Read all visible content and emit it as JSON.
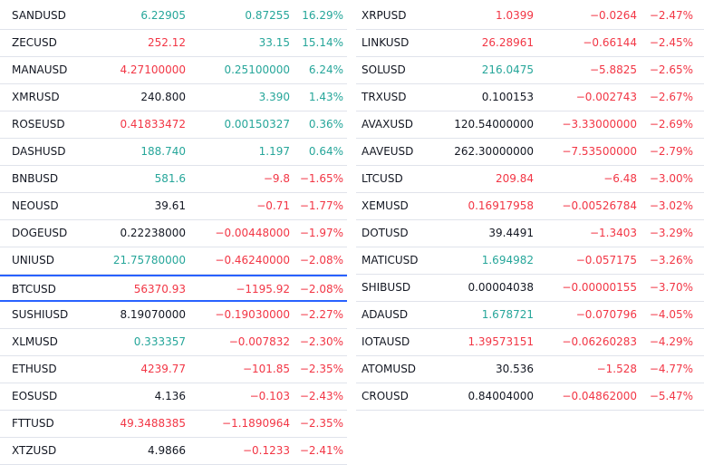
{
  "colors": {
    "up": "#26a69a",
    "down": "#f23645",
    "neutral": "#131722",
    "selected_border": "#2962ff"
  },
  "left": [
    {
      "symbol": "SANDUSD",
      "last": "6.22905",
      "last_dir": "up",
      "change": "0.87255",
      "change_pct": "16.29%",
      "dir": "up"
    },
    {
      "symbol": "ZECUSD",
      "last": "252.12",
      "last_dir": "down",
      "change": "33.15",
      "change_pct": "15.14%",
      "dir": "up"
    },
    {
      "symbol": "MANAUSD",
      "last": "4.27100000",
      "last_dir": "down",
      "change": "0.25100000",
      "change_pct": "6.24%",
      "dir": "up"
    },
    {
      "symbol": "XMRUSD",
      "last": "240.800",
      "last_dir": "flat",
      "change": "3.390",
      "change_pct": "1.43%",
      "dir": "up"
    },
    {
      "symbol": "ROSEUSD",
      "last": "0.41833472",
      "last_dir": "down",
      "change": "0.00150327",
      "change_pct": "0.36%",
      "dir": "up"
    },
    {
      "symbol": "DASHUSD",
      "last": "188.740",
      "last_dir": "up",
      "change": "1.197",
      "change_pct": "0.64%",
      "dir": "up"
    },
    {
      "symbol": "BNBUSD",
      "last": "581.6",
      "last_dir": "up",
      "change": "−9.8",
      "change_pct": "−1.65%",
      "dir": "down"
    },
    {
      "symbol": "NEOUSD",
      "last": "39.61",
      "last_dir": "flat",
      "change": "−0.71",
      "change_pct": "−1.77%",
      "dir": "down"
    },
    {
      "symbol": "DOGEUSD",
      "last": "0.22238000",
      "last_dir": "flat",
      "change": "−0.00448000",
      "change_pct": "−1.97%",
      "dir": "down"
    },
    {
      "symbol": "UNIUSD",
      "last": "21.75780000",
      "last_dir": "up",
      "change": "−0.46240000",
      "change_pct": "−2.08%",
      "dir": "down"
    },
    {
      "symbol": "BTCUSD",
      "last": "56370.93",
      "last_dir": "down",
      "change": "−1195.92",
      "change_pct": "−2.08%",
      "dir": "down",
      "selected": true
    },
    {
      "symbol": "SUSHIUSD",
      "last": "8.19070000",
      "last_dir": "flat",
      "change": "−0.19030000",
      "change_pct": "−2.27%",
      "dir": "down"
    },
    {
      "symbol": "XLMUSD",
      "last": "0.333357",
      "last_dir": "up",
      "change": "−0.007832",
      "change_pct": "−2.30%",
      "dir": "down"
    },
    {
      "symbol": "ETHUSD",
      "last": "4239.77",
      "last_dir": "down",
      "change": "−101.85",
      "change_pct": "−2.35%",
      "dir": "down"
    },
    {
      "symbol": "EOSUSD",
      "last": "4.136",
      "last_dir": "flat",
      "change": "−0.103",
      "change_pct": "−2.43%",
      "dir": "down"
    },
    {
      "symbol": "FTTUSD",
      "last": "49.3488385",
      "last_dir": "down",
      "change": "−1.1890964",
      "change_pct": "−2.35%",
      "dir": "down"
    },
    {
      "symbol": "XTZUSD",
      "last": "4.9866",
      "last_dir": "flat",
      "change": "−0.1233",
      "change_pct": "−2.41%",
      "dir": "down"
    }
  ],
  "right": [
    {
      "symbol": "XRPUSD",
      "last": "1.0399",
      "last_dir": "down",
      "change": "−0.0264",
      "change_pct": "−2.47%",
      "dir": "down"
    },
    {
      "symbol": "LINKUSD",
      "last": "26.28961",
      "last_dir": "down",
      "change": "−0.66144",
      "change_pct": "−2.45%",
      "dir": "down"
    },
    {
      "symbol": "SOLUSD",
      "last": "216.0475",
      "last_dir": "up",
      "change": "−5.8825",
      "change_pct": "−2.65%",
      "dir": "down"
    },
    {
      "symbol": "TRXUSD",
      "last": "0.100153",
      "last_dir": "flat",
      "change": "−0.002743",
      "change_pct": "−2.67%",
      "dir": "down"
    },
    {
      "symbol": "AVAXUSD",
      "last": "120.54000000",
      "last_dir": "flat",
      "change": "−3.33000000",
      "change_pct": "−2.69%",
      "dir": "down"
    },
    {
      "symbol": "AAVEUSD",
      "last": "262.30000000",
      "last_dir": "flat",
      "change": "−7.53500000",
      "change_pct": "−2.79%",
      "dir": "down"
    },
    {
      "symbol": "LTCUSD",
      "last": "209.84",
      "last_dir": "down",
      "change": "−6.48",
      "change_pct": "−3.00%",
      "dir": "down"
    },
    {
      "symbol": "XEMUSD",
      "last": "0.16917958",
      "last_dir": "down",
      "change": "−0.00526784",
      "change_pct": "−3.02%",
      "dir": "down"
    },
    {
      "symbol": "DOTUSD",
      "last": "39.4491",
      "last_dir": "flat",
      "change": "−1.3403",
      "change_pct": "−3.29%",
      "dir": "down"
    },
    {
      "symbol": "MATICUSD",
      "last": "1.694982",
      "last_dir": "up",
      "change": "−0.057175",
      "change_pct": "−3.26%",
      "dir": "down"
    },
    {
      "symbol": "SHIBUSD",
      "last": "0.00004038",
      "last_dir": "flat",
      "change": "−0.00000155",
      "change_pct": "−3.70%",
      "dir": "down"
    },
    {
      "symbol": "ADAUSD",
      "last": "1.678721",
      "last_dir": "up",
      "change": "−0.070796",
      "change_pct": "−4.05%",
      "dir": "down"
    },
    {
      "symbol": "IOTAUSD",
      "last": "1.39573151",
      "last_dir": "down",
      "change": "−0.06260283",
      "change_pct": "−4.29%",
      "dir": "down"
    },
    {
      "symbol": "ATOMUSD",
      "last": "30.536",
      "last_dir": "flat",
      "change": "−1.528",
      "change_pct": "−4.77%",
      "dir": "down"
    },
    {
      "symbol": "CROUSD",
      "last": "0.84004000",
      "last_dir": "flat",
      "change": "−0.04862000",
      "change_pct": "−5.47%",
      "dir": "down"
    }
  ]
}
